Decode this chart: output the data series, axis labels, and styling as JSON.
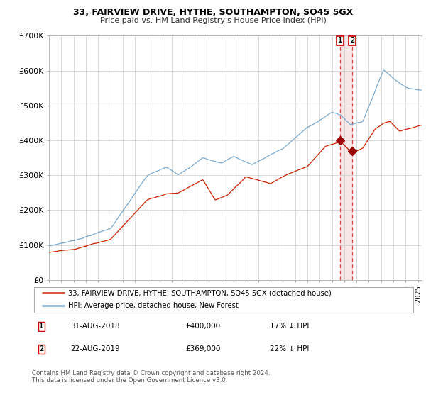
{
  "title": "33, FAIRVIEW DRIVE, HYTHE, SOUTHAMPTON, SO45 5GX",
  "subtitle": "Price paid vs. HM Land Registry's House Price Index (HPI)",
  "legend_line1": "33, FAIRVIEW DRIVE, HYTHE, SOUTHAMPTON, SO45 5GX (detached house)",
  "legend_line2": "HPI: Average price, detached house, New Forest",
  "annotation1_date": "31-AUG-2018",
  "annotation1_price": "£400,000",
  "annotation1_hpi": "17% ↓ HPI",
  "annotation2_date": "22-AUG-2019",
  "annotation2_price": "£369,000",
  "annotation2_hpi": "22% ↓ HPI",
  "footer": "Contains HM Land Registry data © Crown copyright and database right 2024.\nThis data is licensed under the Open Government Licence v3.0.",
  "hpi_color": "#7aaad0",
  "price_color": "#cc2200",
  "marker_color": "#990000",
  "vline_color": "#dd4444",
  "shade_color": "#f0d0d0",
  "background_color": "#ffffff",
  "grid_color": "#cccccc",
  "ylim": [
    0,
    700000
  ],
  "xlim_left": 1995,
  "xlim_right": 2025.3,
  "sale1_year": 2018.667,
  "sale1_price": 400000,
  "sale2_year": 2019.644,
  "sale2_price": 369000,
  "yticks": [
    0,
    100000,
    200000,
    300000,
    400000,
    500000,
    600000,
    700000
  ],
  "ytick_labels": [
    "£0",
    "£100K",
    "£200K",
    "£300K",
    "£400K",
    "£500K",
    "£600K",
    "£700K"
  ]
}
